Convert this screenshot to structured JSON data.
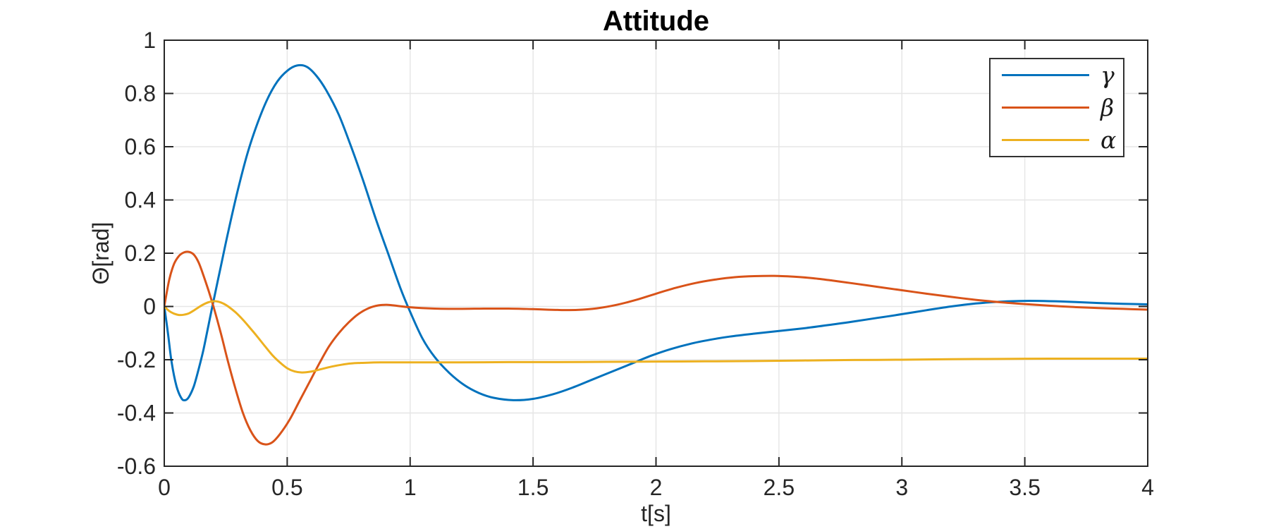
{
  "figure": {
    "background": "#ffffff",
    "axis_color": "#262626",
    "grid_color": "#e6e6e6",
    "tick_label_color": "#262626"
  },
  "chart_data": {
    "type": "line",
    "title": "Attitude",
    "xlabel": "t[s]",
    "ylabel": "Θ[rad]",
    "xlim": [
      0,
      4
    ],
    "ylim": [
      -0.6,
      1
    ],
    "xticks": [
      0,
      0.5,
      1,
      1.5,
      2,
      2.5,
      3,
      3.5,
      4
    ],
    "xtick_labels": [
      "0",
      "0.5",
      "1",
      "1.5",
      "2",
      "2.5",
      "3",
      "3.5",
      "4"
    ],
    "yticks": [
      -0.6,
      -0.4,
      -0.2,
      0,
      0.2,
      0.4,
      0.6,
      0.8,
      1
    ],
    "ytick_labels": [
      "-0.6",
      "-0.4",
      "-0.2",
      "0",
      "0.2",
      "0.4",
      "0.6",
      "0.8",
      "1"
    ],
    "grid": true,
    "legend_position": "northeast",
    "series": [
      {
        "name": "γ",
        "color": "#0072BD",
        "points": [
          [
            0,
            0
          ],
          [
            0.015,
            -0.1
          ],
          [
            0.03,
            -0.21
          ],
          [
            0.05,
            -0.3
          ],
          [
            0.07,
            -0.345
          ],
          [
            0.085,
            -0.352
          ],
          [
            0.1,
            -0.34
          ],
          [
            0.12,
            -0.3
          ],
          [
            0.14,
            -0.235
          ],
          [
            0.16,
            -0.16
          ],
          [
            0.18,
            -0.07
          ],
          [
            0.2,
            0.02
          ],
          [
            0.23,
            0.15
          ],
          [
            0.26,
            0.28
          ],
          [
            0.3,
            0.44
          ],
          [
            0.34,
            0.58
          ],
          [
            0.38,
            0.69
          ],
          [
            0.42,
            0.78
          ],
          [
            0.46,
            0.845
          ],
          [
            0.5,
            0.885
          ],
          [
            0.54,
            0.905
          ],
          [
            0.58,
            0.9
          ],
          [
            0.62,
            0.865
          ],
          [
            0.66,
            0.81
          ],
          [
            0.71,
            0.72
          ],
          [
            0.76,
            0.6
          ],
          [
            0.81,
            0.47
          ],
          [
            0.86,
            0.33
          ],
          [
            0.91,
            0.2
          ],
          [
            0.96,
            0.07
          ],
          [
            1.0,
            -0.02
          ],
          [
            1.05,
            -0.12
          ],
          [
            1.1,
            -0.19
          ],
          [
            1.16,
            -0.25
          ],
          [
            1.22,
            -0.295
          ],
          [
            1.28,
            -0.325
          ],
          [
            1.34,
            -0.343
          ],
          [
            1.42,
            -0.352
          ],
          [
            1.5,
            -0.347
          ],
          [
            1.58,
            -0.33
          ],
          [
            1.66,
            -0.305
          ],
          [
            1.74,
            -0.275
          ],
          [
            1.82,
            -0.245
          ],
          [
            1.9,
            -0.215
          ],
          [
            1.98,
            -0.185
          ],
          [
            2.06,
            -0.16
          ],
          [
            2.14,
            -0.14
          ],
          [
            2.22,
            -0.125
          ],
          [
            2.3,
            -0.113
          ],
          [
            2.4,
            -0.102
          ],
          [
            2.5,
            -0.092
          ],
          [
            2.6,
            -0.082
          ],
          [
            2.7,
            -0.07
          ],
          [
            2.8,
            -0.057
          ],
          [
            2.9,
            -0.043
          ],
          [
            3.0,
            -0.029
          ],
          [
            3.1,
            -0.014
          ],
          [
            3.2,
            0.0
          ],
          [
            3.3,
            0.011
          ],
          [
            3.4,
            0.018
          ],
          [
            3.5,
            0.021
          ],
          [
            3.6,
            0.02
          ],
          [
            3.7,
            0.017
          ],
          [
            3.8,
            0.013
          ],
          [
            3.9,
            0.01
          ],
          [
            4.0,
            0.008
          ]
        ]
      },
      {
        "name": "β",
        "color": "#D95319",
        "points": [
          [
            0,
            0
          ],
          [
            0.02,
            0.1
          ],
          [
            0.04,
            0.16
          ],
          [
            0.06,
            0.19
          ],
          [
            0.08,
            0.203
          ],
          [
            0.1,
            0.205
          ],
          [
            0.12,
            0.195
          ],
          [
            0.14,
            0.165
          ],
          [
            0.16,
            0.115
          ],
          [
            0.18,
            0.06
          ],
          [
            0.2,
            0.0
          ],
          [
            0.23,
            -0.1
          ],
          [
            0.26,
            -0.21
          ],
          [
            0.29,
            -0.31
          ],
          [
            0.32,
            -0.4
          ],
          [
            0.35,
            -0.465
          ],
          [
            0.38,
            -0.505
          ],
          [
            0.41,
            -0.518
          ],
          [
            0.44,
            -0.51
          ],
          [
            0.47,
            -0.48
          ],
          [
            0.51,
            -0.425
          ],
          [
            0.55,
            -0.355
          ],
          [
            0.59,
            -0.285
          ],
          [
            0.63,
            -0.215
          ],
          [
            0.67,
            -0.15
          ],
          [
            0.71,
            -0.1
          ],
          [
            0.75,
            -0.06
          ],
          [
            0.79,
            -0.028
          ],
          [
            0.83,
            -0.007
          ],
          [
            0.87,
            0.004
          ],
          [
            0.91,
            0.006
          ],
          [
            0.95,
            0.002
          ],
          [
            1.0,
            -0.003
          ],
          [
            1.1,
            -0.008
          ],
          [
            1.2,
            -0.009
          ],
          [
            1.3,
            -0.008
          ],
          [
            1.4,
            -0.008
          ],
          [
            1.5,
            -0.01
          ],
          [
            1.6,
            -0.013
          ],
          [
            1.68,
            -0.013
          ],
          [
            1.76,
            -0.007
          ],
          [
            1.84,
            0.006
          ],
          [
            1.92,
            0.025
          ],
          [
            2.0,
            0.048
          ],
          [
            2.08,
            0.07
          ],
          [
            2.16,
            0.088
          ],
          [
            2.24,
            0.101
          ],
          [
            2.32,
            0.11
          ],
          [
            2.4,
            0.114
          ],
          [
            2.48,
            0.115
          ],
          [
            2.56,
            0.112
          ],
          [
            2.64,
            0.106
          ],
          [
            2.72,
            0.097
          ],
          [
            2.8,
            0.087
          ],
          [
            2.9,
            0.074
          ],
          [
            3.0,
            0.061
          ],
          [
            3.1,
            0.048
          ],
          [
            3.2,
            0.036
          ],
          [
            3.3,
            0.025
          ],
          [
            3.4,
            0.016
          ],
          [
            3.5,
            0.009
          ],
          [
            3.6,
            0.003
          ],
          [
            3.7,
            -0.002
          ],
          [
            3.8,
            -0.006
          ],
          [
            3.9,
            -0.009
          ],
          [
            4.0,
            -0.012
          ]
        ]
      },
      {
        "name": "α",
        "color": "#EDB120",
        "points": [
          [
            0,
            0
          ],
          [
            0.02,
            -0.017
          ],
          [
            0.04,
            -0.027
          ],
          [
            0.06,
            -0.032
          ],
          [
            0.08,
            -0.031
          ],
          [
            0.1,
            -0.026
          ],
          [
            0.12,
            -0.015
          ],
          [
            0.14,
            -0.003
          ],
          [
            0.16,
            0.008
          ],
          [
            0.18,
            0.016
          ],
          [
            0.2,
            0.02
          ],
          [
            0.22,
            0.018
          ],
          [
            0.24,
            0.011
          ],
          [
            0.26,
            0.0
          ],
          [
            0.29,
            -0.022
          ],
          [
            0.32,
            -0.05
          ],
          [
            0.35,
            -0.082
          ],
          [
            0.38,
            -0.115
          ],
          [
            0.41,
            -0.15
          ],
          [
            0.44,
            -0.183
          ],
          [
            0.47,
            -0.21
          ],
          [
            0.5,
            -0.232
          ],
          [
            0.53,
            -0.244
          ],
          [
            0.56,
            -0.248
          ],
          [
            0.6,
            -0.244
          ],
          [
            0.64,
            -0.235
          ],
          [
            0.68,
            -0.226
          ],
          [
            0.72,
            -0.219
          ],
          [
            0.76,
            -0.214
          ],
          [
            0.8,
            -0.212
          ],
          [
            0.88,
            -0.21
          ],
          [
            1.0,
            -0.21
          ],
          [
            1.2,
            -0.21
          ],
          [
            1.4,
            -0.209
          ],
          [
            1.6,
            -0.209
          ],
          [
            1.8,
            -0.208
          ],
          [
            2.0,
            -0.207
          ],
          [
            2.2,
            -0.206
          ],
          [
            2.4,
            -0.205
          ],
          [
            2.6,
            -0.203
          ],
          [
            2.8,
            -0.201
          ],
          [
            3.0,
            -0.2
          ],
          [
            3.2,
            -0.198
          ],
          [
            3.4,
            -0.197
          ],
          [
            3.6,
            -0.196
          ],
          [
            3.8,
            -0.196
          ],
          [
            4.0,
            -0.196
          ]
        ]
      }
    ]
  }
}
